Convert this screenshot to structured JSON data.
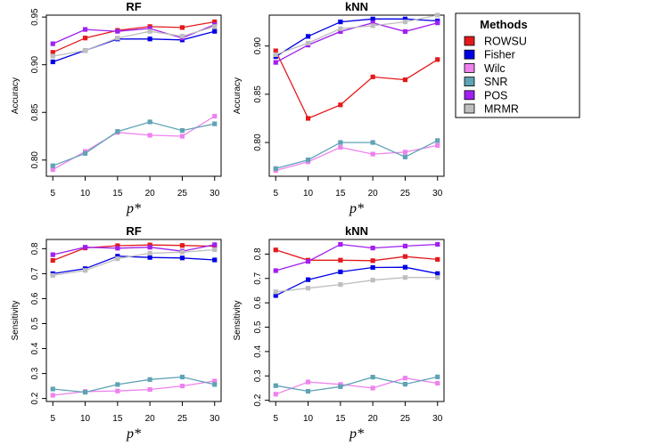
{
  "legend": {
    "title": "Methods",
    "items": [
      {
        "name": "ROWSU",
        "color": "#e31a1c"
      },
      {
        "name": "Fisher",
        "color": "#0000e6"
      },
      {
        "name": "Wilc",
        "color": "#ee82ee"
      },
      {
        "name": "SNR",
        "color": "#5fa3b5"
      },
      {
        "name": "POS",
        "color": "#a020f0"
      },
      {
        "name": "MRMR",
        "color": "#bebebe"
      }
    ]
  },
  "chart_data": [
    {
      "type": "line",
      "title": "RF",
      "xlabel": "p*",
      "ylabel": "Accuracy",
      "x": [
        5,
        10,
        15,
        20,
        25,
        30
      ],
      "ylim": [
        0.783,
        0.952
      ],
      "yticks": [
        0.8,
        0.85,
        0.9,
        0.95
      ],
      "ytick_labels": [
        "0.80",
        "0.85",
        "0.90",
        "0.95"
      ],
      "series": [
        {
          "name": "ROWSU",
          "values": [
            0.913,
            0.928,
            0.936,
            0.94,
            0.939,
            0.945
          ]
        },
        {
          "name": "Fisher",
          "values": [
            0.903,
            0.915,
            0.927,
            0.927,
            0.926,
            0.935
          ]
        },
        {
          "name": "Wilc",
          "values": [
            0.79,
            0.809,
            0.829,
            0.826,
            0.825,
            0.846
          ]
        },
        {
          "name": "SNR",
          "values": [
            0.794,
            0.807,
            0.83,
            0.84,
            0.831,
            0.838
          ]
        },
        {
          "name": "POS",
          "values": [
            0.922,
            0.937,
            0.935,
            0.938,
            0.928,
            0.942
          ]
        },
        {
          "name": "MRMR",
          "values": [
            0.909,
            0.915,
            0.928,
            0.935,
            0.93,
            0.94
          ]
        }
      ]
    },
    {
      "type": "line",
      "title": "kNN",
      "xlabel": "p*",
      "ylabel": "Accuracy",
      "x": [
        5,
        10,
        15,
        20,
        25,
        30
      ],
      "ylim": [
        0.765,
        0.932
      ],
      "yticks": [
        0.8,
        0.85,
        0.9
      ],
      "ytick_labels": [
        "0.80",
        "0.85",
        "0.90"
      ],
      "series": [
        {
          "name": "ROWSU",
          "values": [
            0.895,
            0.825,
            0.839,
            0.868,
            0.865,
            0.886
          ]
        },
        {
          "name": "Fisher",
          "values": [
            0.889,
            0.91,
            0.925,
            0.928,
            0.928,
            0.926
          ]
        },
        {
          "name": "Wilc",
          "values": [
            0.771,
            0.78,
            0.795,
            0.788,
            0.79,
            0.797
          ]
        },
        {
          "name": "SNR",
          "values": [
            0.773,
            0.782,
            0.8,
            0.8,
            0.785,
            0.802
          ]
        },
        {
          "name": "POS",
          "values": [
            0.883,
            0.901,
            0.915,
            0.924,
            0.915,
            0.924
          ]
        },
        {
          "name": "MRMR",
          "values": [
            0.891,
            0.903,
            0.918,
            0.921,
            0.925,
            0.932
          ]
        }
      ]
    },
    {
      "type": "line",
      "title": "RF",
      "xlabel": "p*",
      "ylabel": "Sensitivity",
      "x": [
        5,
        10,
        15,
        20,
        25,
        30
      ],
      "ylim": [
        0.188,
        0.837
      ],
      "yticks": [
        0.2,
        0.3,
        0.4,
        0.5,
        0.6,
        0.7,
        0.8
      ],
      "ytick_labels": [
        "0.2",
        "0.3",
        "0.4",
        "0.5",
        "0.6",
        "0.7",
        "0.8"
      ],
      "series": [
        {
          "name": "ROWSU",
          "values": [
            0.753,
            0.803,
            0.812,
            0.815,
            0.813,
            0.81
          ]
        },
        {
          "name": "Fisher",
          "values": [
            0.7,
            0.72,
            0.77,
            0.765,
            0.763,
            0.755
          ]
        },
        {
          "name": "Wilc",
          "values": [
            0.213,
            0.228,
            0.23,
            0.236,
            0.25,
            0.27
          ]
        },
        {
          "name": "SNR",
          "values": [
            0.238,
            0.225,
            0.256,
            0.276,
            0.286,
            0.256
          ]
        },
        {
          "name": "POS",
          "values": [
            0.776,
            0.806,
            0.802,
            0.806,
            0.79,
            0.816
          ]
        },
        {
          "name": "MRMR",
          "values": [
            0.693,
            0.713,
            0.76,
            0.782,
            0.786,
            0.796
          ]
        }
      ]
    },
    {
      "type": "line",
      "title": "kNN",
      "xlabel": "p*",
      "ylabel": "Sensitivity",
      "x": [
        5,
        10,
        15,
        20,
        25,
        30
      ],
      "ylim": [
        0.195,
        0.86
      ],
      "yticks": [
        0.2,
        0.3,
        0.4,
        0.5,
        0.6,
        0.7,
        0.8
      ],
      "ytick_labels": [
        "0.2",
        "0.3",
        "0.4",
        "0.5",
        "0.6",
        "0.7",
        "0.8"
      ],
      "series": [
        {
          "name": "ROWSU",
          "values": [
            0.817,
            0.775,
            0.775,
            0.773,
            0.79,
            0.778
          ]
        },
        {
          "name": "Fisher",
          "values": [
            0.63,
            0.695,
            0.727,
            0.745,
            0.746,
            0.72
          ]
        },
        {
          "name": "Wilc",
          "values": [
            0.225,
            0.275,
            0.265,
            0.25,
            0.291,
            0.27
          ]
        },
        {
          "name": "SNR",
          "values": [
            0.26,
            0.237,
            0.256,
            0.295,
            0.266,
            0.296
          ]
        },
        {
          "name": "POS",
          "values": [
            0.732,
            0.77,
            0.84,
            0.825,
            0.833,
            0.84
          ]
        },
        {
          "name": "MRMR",
          "values": [
            0.645,
            0.66,
            0.675,
            0.693,
            0.704,
            0.704
          ]
        }
      ]
    }
  ]
}
